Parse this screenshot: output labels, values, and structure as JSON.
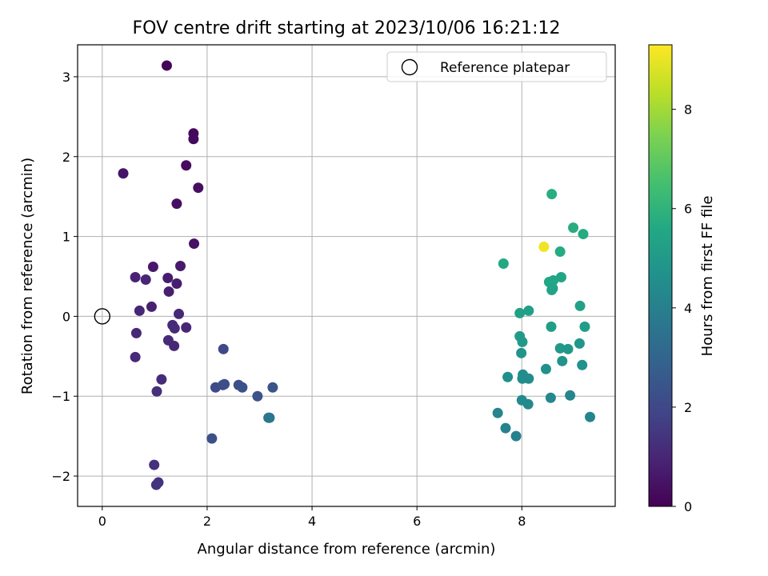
{
  "chart_data": {
    "type": "scatter",
    "title": "FOV centre drift starting at 2023/10/06 16:21:12",
    "xlabel": "Angular distance from reference (arcmin)",
    "ylabel": "Rotation from reference (arcmin)",
    "xlim": [
      -0.47,
      9.78
    ],
    "ylim": [
      -2.38,
      3.4
    ],
    "xticks": [
      0,
      2,
      4,
      6,
      8
    ],
    "xtick_labels": [
      "0",
      "2",
      "4",
      "6",
      "8"
    ],
    "yticks": [
      -2,
      -1,
      0,
      1,
      2,
      3
    ],
    "ytick_labels": [
      "−2",
      "−1",
      "0",
      "1",
      "2",
      "3"
    ],
    "grid": true,
    "legend": {
      "placement": "top-right",
      "entries": [
        {
          "label": "Reference platepar",
          "marker": "open-circle"
        }
      ]
    },
    "reference_point": {
      "name": "Reference platepar",
      "x": 0,
      "y": 0
    },
    "colorbar": {
      "label": "Hours from first FF file",
      "colormap": "viridis",
      "range": [
        0,
        9.3
      ],
      "ticks": [
        0,
        2,
        4,
        6,
        8
      ],
      "tick_labels": [
        "0",
        "2",
        "4",
        "6",
        "8"
      ]
    },
    "points": [
      {
        "x": 1.23,
        "y": 3.14,
        "c": 0.1
      },
      {
        "x": 1.74,
        "y": 2.29,
        "c": 0.2
      },
      {
        "x": 1.74,
        "y": 2.22,
        "c": 0.25
      },
      {
        "x": 1.6,
        "y": 1.89,
        "c": 0.3
      },
      {
        "x": 1.83,
        "y": 1.61,
        "c": 0.35
      },
      {
        "x": 0.4,
        "y": 1.79,
        "c": 0.5
      },
      {
        "x": 1.42,
        "y": 1.41,
        "c": 0.4
      },
      {
        "x": 1.75,
        "y": 0.91,
        "c": 0.45
      },
      {
        "x": 0.97,
        "y": 0.62,
        "c": 0.6
      },
      {
        "x": 1.49,
        "y": 0.63,
        "c": 0.65
      },
      {
        "x": 0.63,
        "y": 0.49,
        "c": 0.9
      },
      {
        "x": 0.83,
        "y": 0.46,
        "c": 0.95
      },
      {
        "x": 1.25,
        "y": 0.48,
        "c": 0.7
      },
      {
        "x": 1.42,
        "y": 0.41,
        "c": 0.75
      },
      {
        "x": 1.27,
        "y": 0.31,
        "c": 0.8
      },
      {
        "x": 0.94,
        "y": 0.12,
        "c": 0.85
      },
      {
        "x": 0.71,
        "y": 0.07,
        "c": 1.0
      },
      {
        "x": 1.46,
        "y": 0.03,
        "c": 1.05
      },
      {
        "x": 1.34,
        "y": -0.11,
        "c": 1.1
      },
      {
        "x": 1.38,
        "y": -0.15,
        "c": 1.15
      },
      {
        "x": 1.6,
        "y": -0.14,
        "c": 1.0
      },
      {
        "x": 0.65,
        "y": -0.21,
        "c": 1.05
      },
      {
        "x": 1.26,
        "y": -0.3,
        "c": 1.1
      },
      {
        "x": 1.37,
        "y": -0.37,
        "c": 1.05
      },
      {
        "x": 0.63,
        "y": -0.51,
        "c": 1.1
      },
      {
        "x": 1.13,
        "y": -0.79,
        "c": 1.2
      },
      {
        "x": 1.04,
        "y": -0.94,
        "c": 1.25
      },
      {
        "x": 0.99,
        "y": -1.86,
        "c": 1.3
      },
      {
        "x": 1.07,
        "y": -2.08,
        "c": 1.35
      },
      {
        "x": 1.03,
        "y": -2.11,
        "c": 1.4
      },
      {
        "x": 2.31,
        "y": -0.41,
        "c": 2.0
      },
      {
        "x": 2.16,
        "y": -0.89,
        "c": 2.1
      },
      {
        "x": 2.33,
        "y": -0.85,
        "c": 2.15
      },
      {
        "x": 2.3,
        "y": -0.86,
        "c": 2.2
      },
      {
        "x": 2.6,
        "y": -0.86,
        "c": 2.25
      },
      {
        "x": 2.67,
        "y": -0.89,
        "c": 2.3
      },
      {
        "x": 2.96,
        "y": -1.0,
        "c": 2.35
      },
      {
        "x": 3.25,
        "y": -0.89,
        "c": 2.4
      },
      {
        "x": 2.09,
        "y": -1.53,
        "c": 2.3
      },
      {
        "x": 3.17,
        "y": -1.27,
        "c": 3.6
      },
      {
        "x": 3.19,
        "y": -1.27,
        "c": 3.7
      },
      {
        "x": 8.42,
        "y": 0.87,
        "c": 9.1
      },
      {
        "x": 8.57,
        "y": 1.53,
        "c": 5.8
      },
      {
        "x": 8.98,
        "y": 1.11,
        "c": 5.75
      },
      {
        "x": 9.17,
        "y": 1.03,
        "c": 5.7
      },
      {
        "x": 7.65,
        "y": 0.66,
        "c": 5.6
      },
      {
        "x": 8.73,
        "y": 0.81,
        "c": 5.65
      },
      {
        "x": 8.52,
        "y": 0.43,
        "c": 5.55
      },
      {
        "x": 8.6,
        "y": 0.45,
        "c": 5.5
      },
      {
        "x": 8.75,
        "y": 0.49,
        "c": 5.45
      },
      {
        "x": 8.57,
        "y": 0.33,
        "c": 5.4
      },
      {
        "x": 8.59,
        "y": 0.35,
        "c": 5.35
      },
      {
        "x": 9.11,
        "y": 0.13,
        "c": 5.3
      },
      {
        "x": 8.13,
        "y": 0.07,
        "c": 5.25
      },
      {
        "x": 7.96,
        "y": 0.04,
        "c": 5.2
      },
      {
        "x": 8.56,
        "y": -0.13,
        "c": 5.15
      },
      {
        "x": 9.2,
        "y": -0.13,
        "c": 5.1
      },
      {
        "x": 7.96,
        "y": -0.25,
        "c": 5.05
      },
      {
        "x": 8.01,
        "y": -0.32,
        "c": 5.0
      },
      {
        "x": 8.73,
        "y": -0.4,
        "c": 4.95
      },
      {
        "x": 8.88,
        "y": -0.41,
        "c": 4.9
      },
      {
        "x": 9.1,
        "y": -0.34,
        "c": 4.85
      },
      {
        "x": 7.99,
        "y": -0.46,
        "c": 4.8
      },
      {
        "x": 8.77,
        "y": -0.56,
        "c": 4.75
      },
      {
        "x": 9.15,
        "y": -0.61,
        "c": 4.7
      },
      {
        "x": 8.46,
        "y": -0.66,
        "c": 4.65
      },
      {
        "x": 7.73,
        "y": -0.76,
        "c": 4.6
      },
      {
        "x": 8.02,
        "y": -0.73,
        "c": 4.55
      },
      {
        "x": 8.01,
        "y": -0.78,
        "c": 4.5
      },
      {
        "x": 8.13,
        "y": -0.78,
        "c": 4.45
      },
      {
        "x": 8.0,
        "y": -1.05,
        "c": 4.4
      },
      {
        "x": 8.12,
        "y": -1.1,
        "c": 4.35
      },
      {
        "x": 8.55,
        "y": -1.02,
        "c": 4.3
      },
      {
        "x": 8.92,
        "y": -0.99,
        "c": 4.25
      },
      {
        "x": 9.3,
        "y": -1.26,
        "c": 4.2
      },
      {
        "x": 7.54,
        "y": -1.21,
        "c": 4.15
      },
      {
        "x": 7.69,
        "y": -1.4,
        "c": 4.1
      },
      {
        "x": 7.89,
        "y": -1.5,
        "c": 4.05
      }
    ]
  }
}
